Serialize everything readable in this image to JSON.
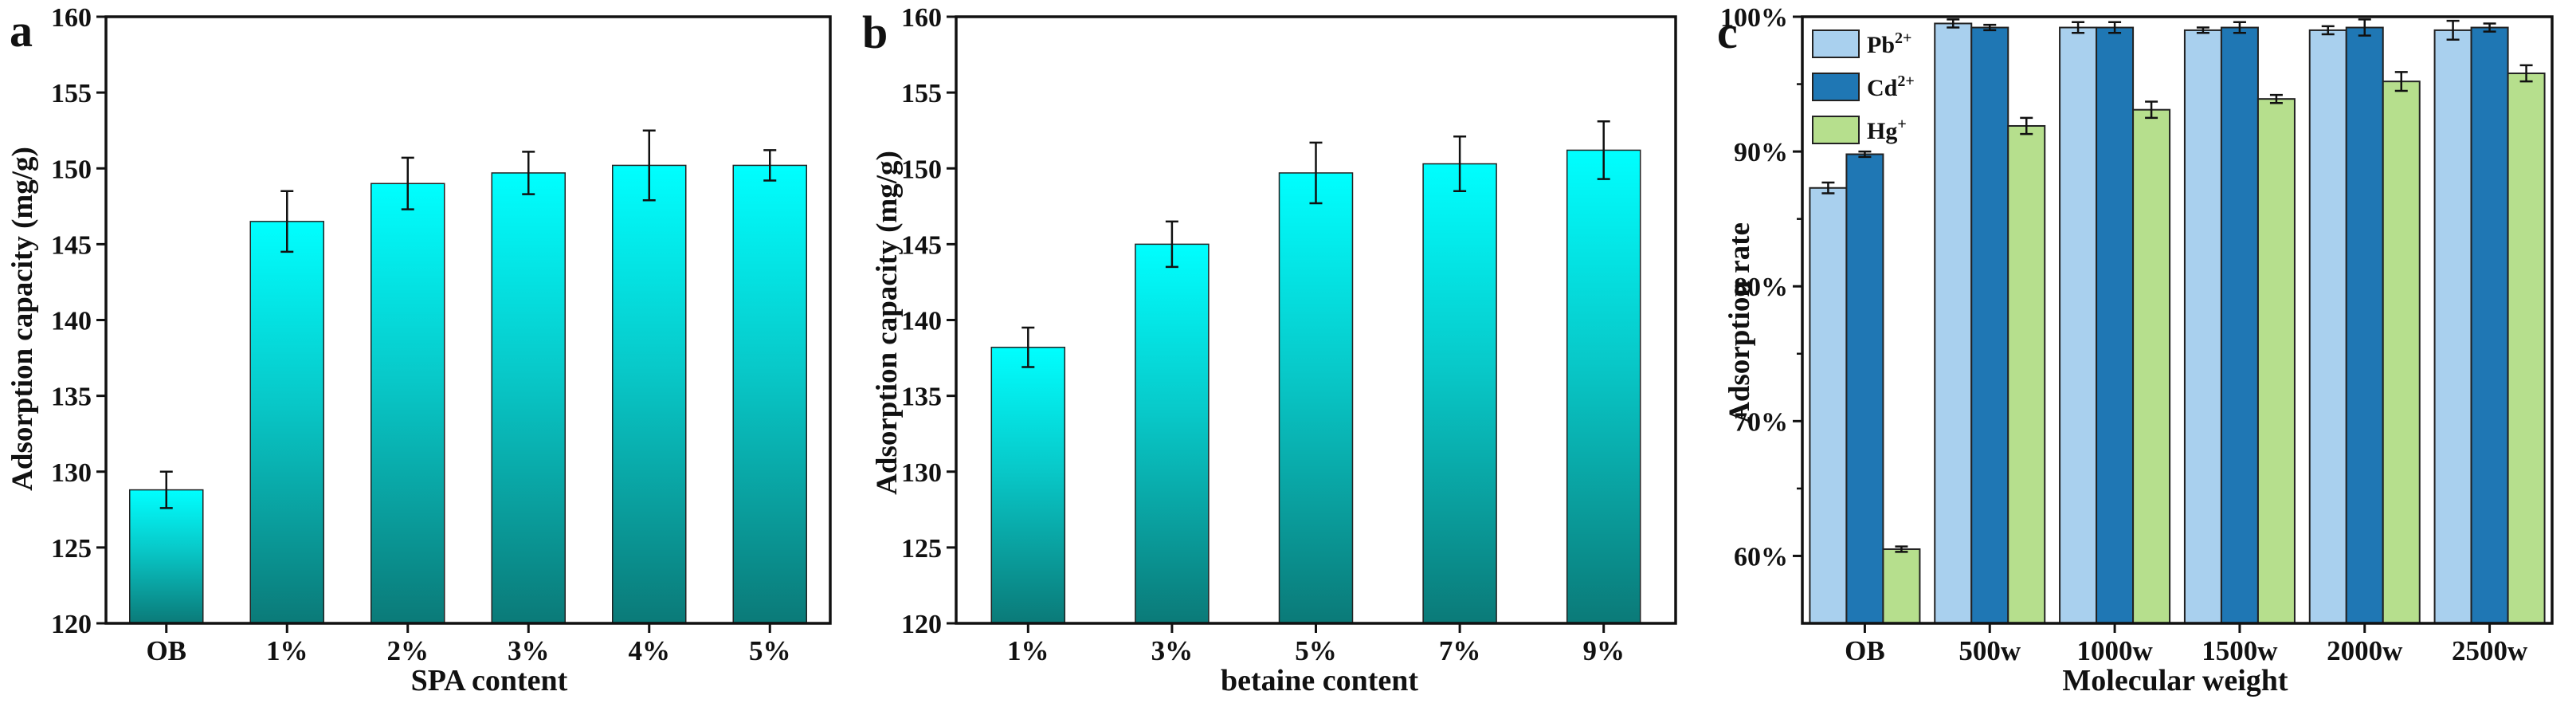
{
  "colors": {
    "bar_top": "#00ffff",
    "bar_bottom": "#0b7a78",
    "bar_stroke": "#222222",
    "pb": "#a9d0ee",
    "cd": "#1f77b4",
    "hg": "#b6df8d"
  },
  "chart_data": [
    {
      "panel_label": "a",
      "type": "bar",
      "title": "",
      "xlabel": "SPA content",
      "ylabel": "Adsorption capacity (mg/g)",
      "categories": [
        "OB",
        "1%",
        "2%",
        "3%",
        "4%",
        "5%"
      ],
      "values": [
        128.8,
        146.5,
        149.0,
        149.7,
        150.2,
        150.2
      ],
      "errors": [
        1.2,
        2.0,
        1.7,
        1.4,
        2.3,
        1.0
      ],
      "ylim": [
        120,
        160
      ],
      "yticks": [
        120,
        125,
        130,
        135,
        140,
        145,
        150,
        155,
        160
      ],
      "ytick_labels": [
        "120",
        "125",
        "130",
        "135",
        "140",
        "145",
        "150",
        "155",
        "160"
      ],
      "grid": false
    },
    {
      "panel_label": "b",
      "type": "bar",
      "title": "",
      "xlabel": "betaine content",
      "ylabel": "Adsorption capacity (mg/g)",
      "categories": [
        "1%",
        "3%",
        "5%",
        "7%",
        "9%"
      ],
      "values": [
        138.2,
        145.0,
        149.7,
        150.3,
        151.2
      ],
      "errors": [
        1.3,
        1.5,
        2.0,
        1.8,
        1.9
      ],
      "ylim": [
        120,
        160
      ],
      "yticks": [
        120,
        125,
        130,
        135,
        140,
        145,
        150,
        155,
        160
      ],
      "ytick_labels": [
        "120",
        "125",
        "130",
        "135",
        "140",
        "145",
        "150",
        "155",
        "160"
      ],
      "grid": false
    },
    {
      "panel_label": "c",
      "type": "bar",
      "title": "",
      "xlabel": "Molecular weight",
      "ylabel": "Adsorption rate",
      "categories": [
        "OB",
        "500w",
        "1000w",
        "1500w",
        "2000w",
        "2500w"
      ],
      "series": [
        {
          "name": "Pb2+",
          "label_base": "Pb",
          "label_sup": "2+",
          "color": "#a9d0ee",
          "values": [
            87.3,
            99.5,
            99.2,
            99.0,
            99.0,
            99.0
          ],
          "errors": [
            0.4,
            0.3,
            0.4,
            0.2,
            0.3,
            0.7
          ]
        },
        {
          "name": "Cd2+",
          "label_base": "Cd",
          "label_sup": "2+",
          "color": "#1f77b4",
          "values": [
            89.8,
            99.2,
            99.2,
            99.2,
            99.2,
            99.2
          ],
          "errors": [
            0.2,
            0.2,
            0.4,
            0.4,
            0.6,
            0.3
          ]
        },
        {
          "name": "Hg+",
          "label_base": "Hg",
          "label_sup": "+",
          "color": "#b6df8d",
          "values": [
            60.5,
            91.9,
            93.1,
            93.9,
            95.2,
            95.8
          ],
          "errors": [
            0.2,
            0.6,
            0.6,
            0.3,
            0.7,
            0.6
          ]
        }
      ],
      "ylim": [
        55,
        100
      ],
      "yticks": [
        60,
        70,
        80,
        90,
        100
      ],
      "ytick_labels": [
        "60%",
        "70%",
        "80%",
        "90%",
        "100%"
      ],
      "legend": "top-left",
      "grid": false
    }
  ]
}
